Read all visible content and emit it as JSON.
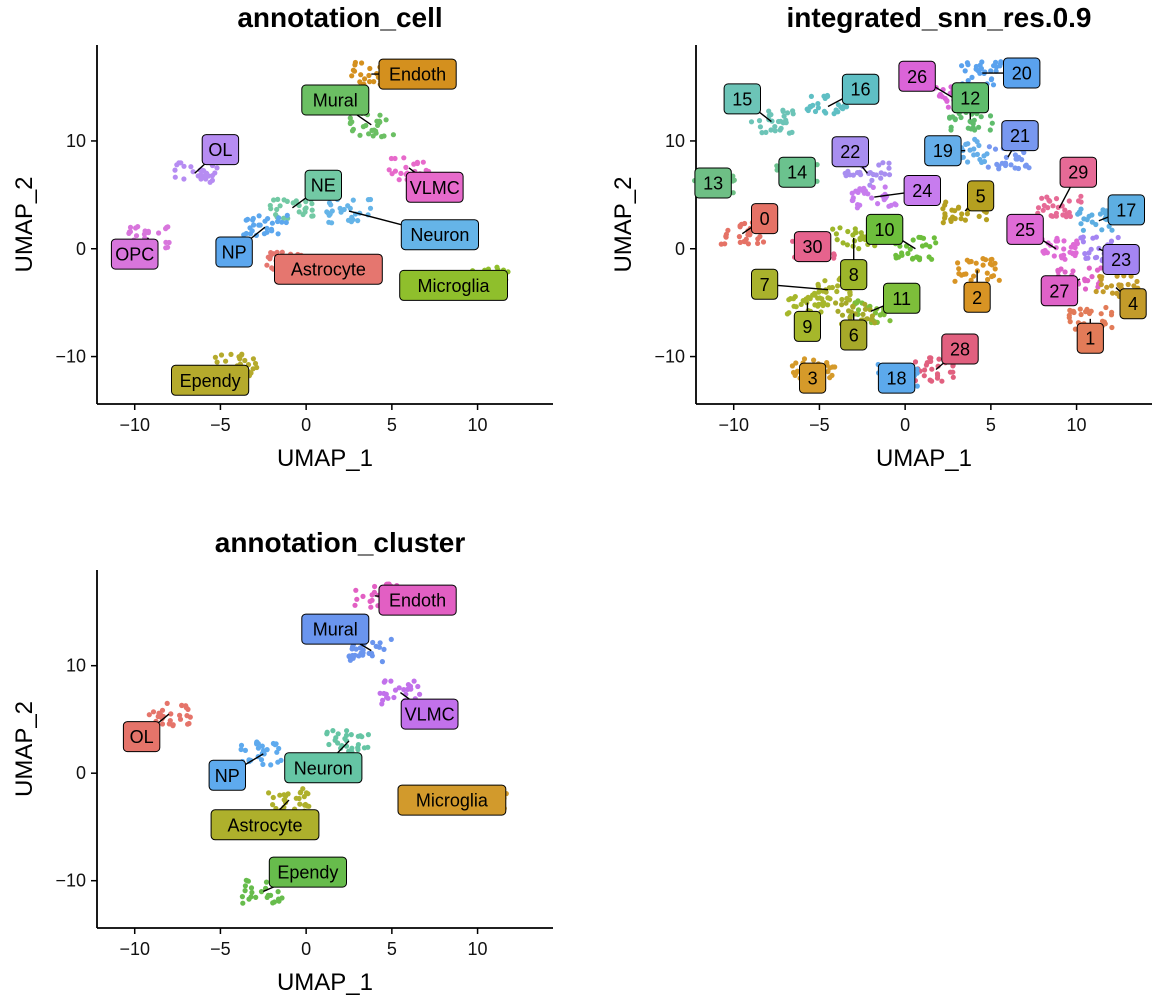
{
  "figure": {
    "x_tick_labels": [
      "−10",
      "−5",
      "0",
      "5",
      "10"
    ],
    "y_tick_labels": [
      "10",
      "0",
      "−10"
    ]
  },
  "chart_data": [
    {
      "type": "scatter",
      "title": "annotation_cell",
      "xlabel": "UMAP_1",
      "ylabel": "UMAP_2",
      "xlim": [
        -12.2,
        14.4
      ],
      "ylim": [
        -14.4,
        18.9
      ],
      "xticks": [
        -10,
        -5,
        0,
        5,
        10
      ],
      "yticks": [
        10,
        0,
        -10
      ],
      "grid": false,
      "legend": "none",
      "labels": [
        {
          "text": "Endoth",
          "x": 6.5,
          "y": 16.2,
          "color": "#D4901E",
          "px": 3.8,
          "py": 16.2
        },
        {
          "text": "Mural",
          "x": 1.7,
          "y": 13.8,
          "color": "#6BBF63",
          "px": 3.8,
          "py": 11.5
        },
        {
          "text": "OL",
          "x": -5.0,
          "y": 9.2,
          "color": "#B68CF2",
          "px": -6.5,
          "py": 7.0
        },
        {
          "text": "NE",
          "x": 1.0,
          "y": 5.9,
          "color": "#72C9A4",
          "px": -0.8,
          "py": 3.8
        },
        {
          "text": "VLMC",
          "x": 7.5,
          "y": 5.7,
          "color": "#E76ACB",
          "px": 6.0,
          "py": 7.5
        },
        {
          "text": "Neuron",
          "x": 7.8,
          "y": 1.3,
          "color": "#65B4E8",
          "px": 2.5,
          "py": 3.5
        },
        {
          "text": "OPC",
          "x": -10.0,
          "y": -0.5,
          "color": "#D875DC",
          "px": -9.2,
          "py": 1.0
        },
        {
          "text": "NP",
          "x": -4.2,
          "y": -0.3,
          "color": "#5CA7EE",
          "px": -2.4,
          "py": 2.0
        },
        {
          "text": "Astrocyte",
          "x": 1.3,
          "y": -1.9,
          "color": "#E5766F",
          "px": -1.0,
          "py": -1.4
        },
        {
          "text": "Microglia",
          "x": 8.6,
          "y": -3.4,
          "color": "#8FBF2C",
          "px": 10.5,
          "py": -2.8
        },
        {
          "text": "Ependy",
          "x": -5.6,
          "y": -12.2,
          "color": "#B5AA2C",
          "px": -4.0,
          "py": -10.8
        }
      ]
    },
    {
      "type": "scatter",
      "title": "integrated_snn_res.0.9",
      "xlabel": "UMAP_1",
      "ylabel": "UMAP_2",
      "xlim": [
        -12.2,
        14.4
      ],
      "ylim": [
        -14.4,
        18.9
      ],
      "xticks": [
        -10,
        -5,
        0,
        5,
        10
      ],
      "yticks": [
        10,
        0,
        -10
      ],
      "grid": false,
      "legend": "none",
      "labels": [
        {
          "text": "20",
          "x": 6.8,
          "y": 16.3,
          "color": "#5AA2EE",
          "px": 4.5,
          "py": 16.3
        },
        {
          "text": "26",
          "x": 0.7,
          "y": 16.0,
          "color": "#DB64D8",
          "px": 2.8,
          "py": 14.0
        },
        {
          "text": "16",
          "x": -2.6,
          "y": 14.8,
          "color": "#5FBFC4",
          "px": -4.5,
          "py": 13.2
        },
        {
          "text": "12",
          "x": 3.8,
          "y": 14.0,
          "color": "#5FBC6C",
          "px": 3.8,
          "py": 12.0
        },
        {
          "text": "15",
          "x": -9.5,
          "y": 13.9,
          "color": "#6CC4B7",
          "px": -7.8,
          "py": 11.8
        },
        {
          "text": "21",
          "x": 6.7,
          "y": 10.5,
          "color": "#7898F0",
          "px": 6.0,
          "py": 8.5
        },
        {
          "text": "19",
          "x": 2.2,
          "y": 9.1,
          "color": "#65AEE9",
          "px": 3.5,
          "py": 9.1
        },
        {
          "text": "22",
          "x": -3.2,
          "y": 9.0,
          "color": "#A88EF0",
          "px": -2.2,
          "py": 7.0
        },
        {
          "text": "29",
          "x": 10.1,
          "y": 7.1,
          "color": "#E66A96",
          "px": 9.0,
          "py": 3.8
        },
        {
          "text": "14",
          "x": -6.3,
          "y": 7.1,
          "color": "#6BC28E",
          "px": -6.3,
          "py": 7.1
        },
        {
          "text": "13",
          "x": -11.2,
          "y": 6.1,
          "color": "#6EBF85",
          "px": -11.2,
          "py": 6.1
        },
        {
          "text": "24",
          "x": 1.0,
          "y": 5.4,
          "color": "#C77CEE",
          "px": -1.8,
          "py": 4.8
        },
        {
          "text": "5",
          "x": 4.4,
          "y": 4.9,
          "color": "#B5A020",
          "px": 3.5,
          "py": 3.5
        },
        {
          "text": "17",
          "x": 12.9,
          "y": 3.6,
          "color": "#5DAEE2",
          "px": 11.3,
          "py": 2.6
        },
        {
          "text": "0",
          "x": -8.2,
          "y": 2.8,
          "color": "#E57266",
          "px": -9.5,
          "py": 1.4
        },
        {
          "text": "10",
          "x": -1.2,
          "y": 1.8,
          "color": "#6DBE3C",
          "px": 0.6,
          "py": 0.0
        },
        {
          "text": "25",
          "x": 7.0,
          "y": 1.8,
          "color": "#DF6BD6",
          "px": 8.8,
          "py": 0.0
        },
        {
          "text": "30",
          "x": -5.4,
          "y": 0.2,
          "color": "#E6638D",
          "px": -5.4,
          "py": 0.2
        },
        {
          "text": "23",
          "x": 12.6,
          "y": -1.0,
          "color": "#A485F2",
          "px": 11.3,
          "py": 0.0
        },
        {
          "text": "8",
          "x": -3.0,
          "y": -2.4,
          "color": "#9DB62A",
          "px": -3.0,
          "py": 1.0
        },
        {
          "text": "7",
          "x": -8.2,
          "y": -3.3,
          "color": "#A9B22C",
          "px": -4.5,
          "py": -3.8
        },
        {
          "text": "27",
          "x": 9.0,
          "y": -3.9,
          "color": "#DF62C8",
          "px": 10.2,
          "py": -2.8
        },
        {
          "text": "4",
          "x": 13.3,
          "y": -5.1,
          "color": "#C39B2A",
          "px": 12.3,
          "py": -3.6
        },
        {
          "text": "2",
          "x": 4.2,
          "y": -4.5,
          "color": "#D89424",
          "px": 4.2,
          "py": -2.0
        },
        {
          "text": "11",
          "x": -0.2,
          "y": -4.6,
          "color": "#7DBE3A",
          "px": -2.0,
          "py": -5.8
        },
        {
          "text": "9",
          "x": -5.7,
          "y": -7.2,
          "color": "#A6B72B",
          "px": -5.7,
          "py": -5.0
        },
        {
          "text": "6",
          "x": -3.0,
          "y": -8.0,
          "color": "#A6A929",
          "px": -3.0,
          "py": -6.0
        },
        {
          "text": "1",
          "x": 10.8,
          "y": -8.3,
          "color": "#E27B58",
          "px": 10.8,
          "py": -6.5
        },
        {
          "text": "28",
          "x": 3.2,
          "y": -9.3,
          "color": "#E1607F",
          "px": 1.8,
          "py": -11.2
        },
        {
          "text": "3",
          "x": -5.4,
          "y": -12.0,
          "color": "#D59A2A",
          "px": -5.4,
          "py": -11.0
        },
        {
          "text": "18",
          "x": -0.5,
          "y": -12.0,
          "color": "#5CA9EC",
          "px": -0.5,
          "py": -11.8
        }
      ]
    },
    {
      "type": "scatter",
      "title": "annotation_cluster",
      "xlabel": "UMAP_1",
      "ylabel": "UMAP_2",
      "xlim": [
        -12.2,
        14.4
      ],
      "ylim": [
        -14.4,
        18.9
      ],
      "xticks": [
        -10,
        -5,
        0,
        5,
        10
      ],
      "yticks": [
        10,
        0,
        -10
      ],
      "grid": false,
      "legend": "none",
      "labels": [
        {
          "text": "Endoth",
          "x": 6.5,
          "y": 16.1,
          "color": "#E25FC3",
          "px": 4.0,
          "py": 16.5
        },
        {
          "text": "Mural",
          "x": 1.7,
          "y": 13.4,
          "color": "#6A95EE",
          "px": 3.8,
          "py": 11.4
        },
        {
          "text": "VLMC",
          "x": 7.2,
          "y": 5.5,
          "color": "#C271EB",
          "px": 5.5,
          "py": 7.5
        },
        {
          "text": "OL",
          "x": -9.6,
          "y": 3.4,
          "color": "#E5746A",
          "px": -8.0,
          "py": 5.5
        },
        {
          "text": "Neuron",
          "x": 1.0,
          "y": 0.5,
          "color": "#65C5A4",
          "px": 2.5,
          "py": 3.0
        },
        {
          "text": "NP",
          "x": -4.6,
          "y": -0.2,
          "color": "#5EAAEE",
          "px": -2.5,
          "py": 1.8
        },
        {
          "text": "Microglia",
          "x": 8.5,
          "y": -2.5,
          "color": "#D29A2C",
          "px": 10.5,
          "py": -2.5
        },
        {
          "text": "Astrocyte",
          "x": -2.4,
          "y": -4.8,
          "color": "#AEB02C",
          "px": -1.0,
          "py": -2.5
        },
        {
          "text": "Ependy",
          "x": 0.1,
          "y": -9.2,
          "color": "#67BC4C",
          "px": -2.5,
          "py": -11.0
        }
      ]
    }
  ]
}
